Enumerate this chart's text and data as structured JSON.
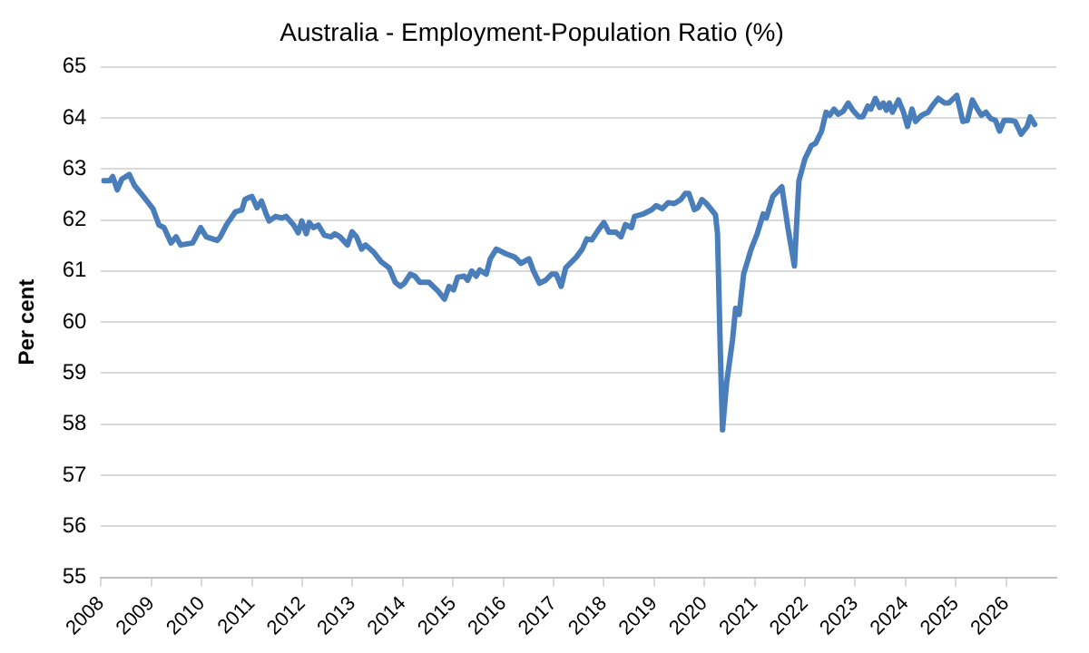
{
  "chart_data": {
    "type": "line",
    "title": "Australia - Employment-Population Ratio (%)",
    "ylabel": "Per cent",
    "x": [
      2008.05,
      2008.17,
      2008.23,
      2008.32,
      2008.41,
      2008.56,
      2008.66,
      2008.84,
      2009.03,
      2009.15,
      2009.25,
      2009.39,
      2009.49,
      2009.58,
      2009.82,
      2009.98,
      2010.09,
      2010.31,
      2010.37,
      2010.49,
      2010.67,
      2010.8,
      2010.86,
      2010.94,
      2011.0,
      2011.1,
      2011.19,
      2011.28,
      2011.34,
      2011.47,
      2011.59,
      2011.68,
      2011.83,
      2011.92,
      2011.99,
      2012.08,
      2012.14,
      2012.22,
      2012.32,
      2012.44,
      2012.57,
      2012.65,
      2012.75,
      2012.9,
      2012.99,
      2013.08,
      2013.18,
      2013.26,
      2013.42,
      2013.57,
      2013.73,
      2013.85,
      2013.95,
      2014.03,
      2014.15,
      2014.24,
      2014.34,
      2014.52,
      2014.7,
      2014.83,
      2014.92,
      2015.01,
      2015.09,
      2015.22,
      2015.29,
      2015.37,
      2015.46,
      2015.53,
      2015.66,
      2015.74,
      2015.86,
      2016.05,
      2016.23,
      2016.35,
      2016.51,
      2016.6,
      2016.72,
      2016.84,
      2016.96,
      2017.05,
      2017.15,
      2017.24,
      2017.45,
      2017.57,
      2017.66,
      2017.76,
      2017.88,
      2018.0,
      2018.1,
      2018.24,
      2018.34,
      2018.43,
      2018.55,
      2018.61,
      2018.79,
      2018.95,
      2019.04,
      2019.16,
      2019.28,
      2019.4,
      2019.53,
      2019.62,
      2019.69,
      2019.8,
      2019.87,
      2019.95,
      2020.04,
      2020.14,
      2020.22,
      2020.26,
      2020.32,
      2020.36,
      2020.44,
      2020.56,
      2020.62,
      2020.69,
      2020.78,
      2020.93,
      2021.05,
      2021.17,
      2021.23,
      2021.36,
      2021.54,
      2021.66,
      2021.79,
      2021.88,
      2022.0,
      2022.13,
      2022.21,
      2022.33,
      2022.42,
      2022.49,
      2022.58,
      2022.66,
      2022.76,
      2022.86,
      2022.95,
      2023.07,
      2023.15,
      2023.25,
      2023.31,
      2023.4,
      2023.49,
      2023.56,
      2023.62,
      2023.68,
      2023.74,
      2023.86,
      2023.96,
      2024.04,
      2024.13,
      2024.2,
      2024.32,
      2024.45,
      2024.53,
      2024.65,
      2024.78,
      2024.86,
      2025.02,
      2025.14,
      2025.23,
      2025.33,
      2025.43,
      2025.51,
      2025.6,
      2025.69,
      2025.79,
      2025.87,
      2025.96,
      2026.08,
      2026.18,
      2026.3,
      2026.42,
      2026.48,
      2026.57
    ],
    "series": [
      {
        "color": "#4a7ebb",
        "values": [
          62.77,
          62.77,
          62.85,
          62.59,
          62.8,
          62.89,
          62.68,
          62.46,
          62.22,
          61.9,
          61.85,
          61.55,
          61.67,
          61.51,
          61.55,
          61.85,
          61.67,
          61.6,
          61.67,
          61.9,
          62.16,
          62.2,
          62.4,
          62.44,
          62.46,
          62.24,
          62.37,
          62.12,
          61.98,
          62.07,
          62.04,
          62.07,
          61.9,
          61.75,
          61.98,
          61.73,
          61.95,
          61.85,
          61.9,
          61.7,
          61.67,
          61.73,
          61.67,
          61.51,
          61.77,
          61.67,
          61.43,
          61.51,
          61.37,
          61.18,
          61.06,
          60.78,
          60.7,
          60.76,
          60.94,
          60.9,
          60.78,
          60.78,
          60.61,
          60.45,
          60.7,
          60.63,
          60.88,
          60.9,
          60.82,
          61.0,
          60.9,
          61.02,
          60.94,
          61.24,
          61.43,
          61.34,
          61.27,
          61.15,
          61.24,
          61.0,
          60.76,
          60.82,
          60.94,
          60.94,
          60.7,
          61.06,
          61.27,
          61.43,
          61.63,
          61.61,
          61.79,
          61.95,
          61.76,
          61.76,
          61.67,
          61.91,
          61.85,
          62.07,
          62.12,
          62.2,
          62.28,
          62.22,
          62.34,
          62.32,
          62.4,
          62.52,
          62.52,
          62.2,
          62.24,
          62.4,
          62.32,
          62.2,
          62.1,
          61.73,
          59.29,
          57.89,
          58.8,
          59.66,
          60.27,
          60.15,
          60.94,
          61.43,
          61.73,
          62.12,
          62.04,
          62.46,
          62.65,
          61.85,
          61.1,
          62.77,
          63.2,
          63.46,
          63.5,
          63.74,
          64.11,
          64.05,
          64.17,
          64.07,
          64.13,
          64.29,
          64.15,
          64.02,
          64.02,
          64.23,
          64.17,
          64.38,
          64.2,
          64.29,
          64.15,
          64.29,
          64.11,
          64.35,
          64.11,
          63.83,
          64.17,
          63.93,
          64.05,
          64.11,
          64.23,
          64.38,
          64.29,
          64.29,
          64.44,
          63.93,
          63.95,
          64.35,
          64.17,
          64.05,
          64.11,
          63.99,
          63.95,
          63.74,
          63.95,
          63.95,
          63.93,
          63.68,
          63.83,
          64.02,
          63.87
        ]
      }
    ],
    "xlim": [
      2008,
      2027
    ],
    "xticks": [
      2008,
      2009,
      2010,
      2011,
      2012,
      2013,
      2014,
      2015,
      2016,
      2017,
      2018,
      2019,
      2020,
      2021,
      2022,
      2023,
      2024,
      2025,
      2026
    ],
    "ylim": [
      55,
      65
    ],
    "yticks": [
      55,
      56,
      57,
      58,
      59,
      60,
      61,
      62,
      63,
      64,
      65
    ],
    "grid": "y",
    "legend": false,
    "marker": "none",
    "line_style": "solid"
  }
}
